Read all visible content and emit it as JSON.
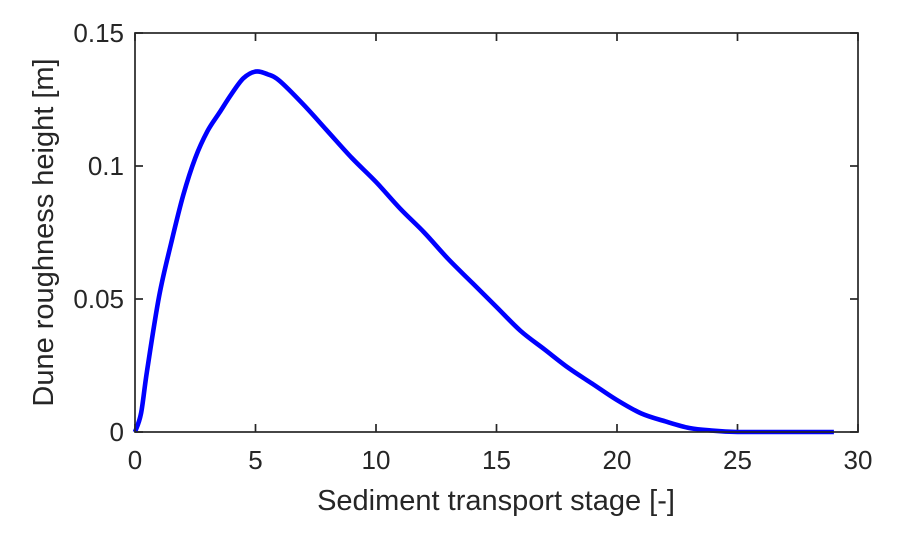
{
  "figure": {
    "background": "#ffffff",
    "axes_color": "#262626",
    "text_color": "#262626"
  },
  "chart_data": {
    "type": "line",
    "title": "",
    "xlabel": "Sediment transport stage [-]",
    "ylabel": "Dune roughness height [m]",
    "xlim": [
      0,
      30
    ],
    "ylim": [
      0,
      0.15
    ],
    "xticks": [
      0,
      5,
      10,
      15,
      20,
      25,
      30
    ],
    "xtick_labels": [
      "0",
      "5",
      "10",
      "15",
      "20",
      "25",
      "30"
    ],
    "yticks": [
      0,
      0.05,
      0.1,
      0.15
    ],
    "ytick_labels": [
      "0",
      "0.05",
      "0.1",
      "0.15"
    ],
    "grid": false,
    "box": true,
    "tick_direction": "in",
    "legend": "none",
    "series": [
      {
        "name": "dune-roughness-height",
        "color": "#0000ff",
        "line_width": 4.6,
        "x": [
          0,
          0.25,
          0.5,
          1,
          1.5,
          2,
          2.5,
          3,
          3.5,
          4,
          4.5,
          5,
          5.5,
          6,
          7,
          8,
          9,
          10,
          11,
          12,
          13,
          14,
          15,
          16,
          17,
          18,
          19,
          20,
          21,
          22,
          23,
          24,
          25,
          26,
          27,
          28,
          29
        ],
        "y": [
          0,
          0.007,
          0.023,
          0.051,
          0.071,
          0.089,
          0.103,
          0.113,
          0.12,
          0.127,
          0.133,
          0.1355,
          0.1345,
          0.132,
          0.123,
          0.113,
          0.103,
          0.094,
          0.084,
          0.075,
          0.065,
          0.056,
          0.047,
          0.038,
          0.031,
          0.024,
          0.018,
          0.012,
          0.007,
          0.004,
          0.0015,
          0.0005,
          0,
          0,
          0,
          0,
          0
        ]
      }
    ]
  }
}
